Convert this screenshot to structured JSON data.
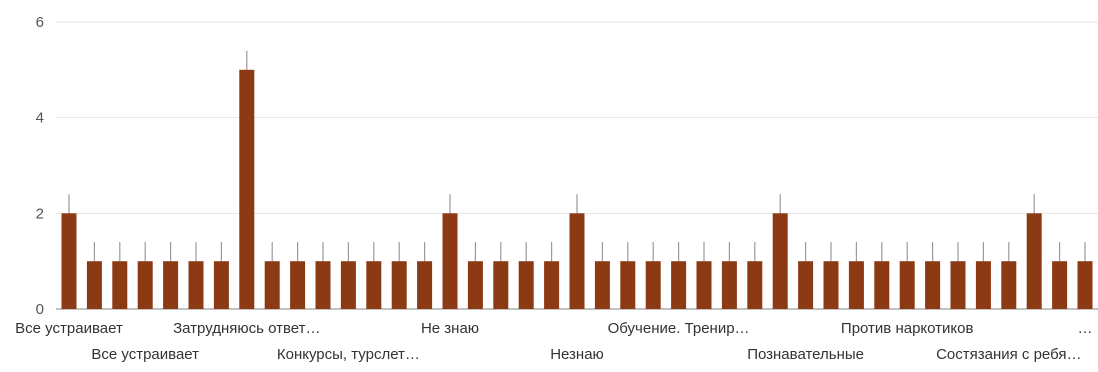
{
  "chart_data": {
    "type": "bar",
    "title": "",
    "xlabel": "",
    "ylabel": "",
    "ylim": [
      0,
      6
    ],
    "yticks": [
      0,
      2,
      4,
      6
    ],
    "grid": true,
    "legend": "none",
    "bar_color": "#8B3A14",
    "error_bar_color": "#9a9a9a",
    "values": [
      2,
      1,
      1,
      1,
      1,
      1,
      1,
      5,
      1,
      1,
      1,
      1,
      1,
      1,
      1,
      2,
      1,
      1,
      1,
      1,
      2,
      1,
      1,
      1,
      1,
      1,
      1,
      1,
      2,
      1,
      1,
      1,
      1,
      1,
      1,
      1,
      1,
      1,
      2,
      1,
      1
    ],
    "visible_category_labels": [
      {
        "bar": 0,
        "row": 0,
        "text": "Все устраивает"
      },
      {
        "bar": 3,
        "row": 1,
        "text": "Все устраивает"
      },
      {
        "bar": 7,
        "row": 0,
        "text": "Затрудняюсь ответ…"
      },
      {
        "bar": 11,
        "row": 1,
        "text": "Конкурсы, турслет…"
      },
      {
        "bar": 15,
        "row": 0,
        "text": "Не знаю"
      },
      {
        "bar": 20,
        "row": 1,
        "text": "Незнаю"
      },
      {
        "bar": 24,
        "row": 0,
        "text": "Обучение. Тренир…"
      },
      {
        "bar": 29,
        "row": 1,
        "text": "Познавательные"
      },
      {
        "bar": 33,
        "row": 0,
        "text": "Против наркотиков"
      },
      {
        "bar": 37,
        "row": 1,
        "text": "Состязания с ребя…"
      },
      {
        "bar": 40,
        "row": 0,
        "text": "…"
      }
    ]
  }
}
